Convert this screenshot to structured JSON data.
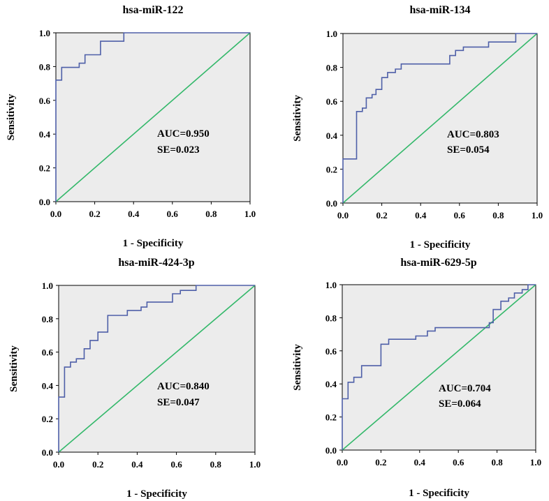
{
  "chart_data": [
    {
      "type": "line",
      "title": "hsa-miR-122",
      "xlabel": "1 - Specificity",
      "ylabel": "Sensitivity",
      "xlim": [
        0,
        1
      ],
      "ylim": [
        0,
        1
      ],
      "xticks": [
        "0.0",
        "0.2",
        "0.4",
        "0.6",
        "0.8",
        "1.0"
      ],
      "yticks": [
        "0.0",
        "0.2",
        "0.4",
        "0.6",
        "0.8",
        "1.0"
      ],
      "auc_text": "AUC=0.950",
      "se_text": "SE=0.023",
      "roc": [
        [
          0,
          0
        ],
        [
          0,
          0.72
        ],
        [
          0.03,
          0.72
        ],
        [
          0.03,
          0.795
        ],
        [
          0.12,
          0.795
        ],
        [
          0.12,
          0.82
        ],
        [
          0.15,
          0.82
        ],
        [
          0.15,
          0.87
        ],
        [
          0.23,
          0.87
        ],
        [
          0.23,
          0.95
        ],
        [
          0.35,
          0.95
        ],
        [
          0.35,
          1.0
        ],
        [
          1.0,
          1.0
        ]
      ],
      "reference": [
        [
          0,
          0
        ],
        [
          1,
          1
        ]
      ]
    },
    {
      "type": "line",
      "title": "hsa-miR-134",
      "xlabel": "1 - Specificity",
      "ylabel": "Sensitivity",
      "xlim": [
        0,
        1
      ],
      "ylim": [
        0,
        1
      ],
      "xticks": [
        "0.0",
        "0.2",
        "0.4",
        "0.6",
        "0.8",
        "1.0"
      ],
      "yticks": [
        "0.0",
        "0.2",
        "0.4",
        "0.6",
        "0.8",
        "1.0"
      ],
      "auc_text": "AUC=0.803",
      "se_text": "SE=0.054",
      "roc": [
        [
          0,
          0
        ],
        [
          0,
          0.26
        ],
        [
          0.07,
          0.26
        ],
        [
          0.07,
          0.54
        ],
        [
          0.1,
          0.54
        ],
        [
          0.1,
          0.56
        ],
        [
          0.12,
          0.56
        ],
        [
          0.12,
          0.62
        ],
        [
          0.15,
          0.62
        ],
        [
          0.15,
          0.64
        ],
        [
          0.17,
          0.64
        ],
        [
          0.17,
          0.67
        ],
        [
          0.2,
          0.67
        ],
        [
          0.2,
          0.74
        ],
        [
          0.23,
          0.74
        ],
        [
          0.23,
          0.77
        ],
        [
          0.27,
          0.77
        ],
        [
          0.27,
          0.79
        ],
        [
          0.3,
          0.79
        ],
        [
          0.3,
          0.82
        ],
        [
          0.55,
          0.82
        ],
        [
          0.55,
          0.87
        ],
        [
          0.58,
          0.87
        ],
        [
          0.58,
          0.9
        ],
        [
          0.62,
          0.9
        ],
        [
          0.62,
          0.92
        ],
        [
          0.75,
          0.92
        ],
        [
          0.75,
          0.95
        ],
        [
          0.89,
          0.95
        ],
        [
          0.89,
          1.0
        ],
        [
          1.0,
          1.0
        ]
      ],
      "reference": [
        [
          0,
          0
        ],
        [
          1,
          1
        ]
      ]
    },
    {
      "type": "line",
      "title": "hsa-miR-424-3p",
      "xlabel": "1 - Specificity",
      "ylabel": "Sensitivity",
      "xlim": [
        0,
        1
      ],
      "ylim": [
        0,
        1
      ],
      "xticks": [
        "0.0",
        "0.2",
        "0.4",
        "0.6",
        "0.8",
        "1.0"
      ],
      "yticks": [
        "0.0",
        "0.2",
        "0.4",
        "0.6",
        "0.8",
        "1.0"
      ],
      "auc_text": "AUC=0.840",
      "se_text": "SE=0.047",
      "roc": [
        [
          0,
          0
        ],
        [
          0,
          0.33
        ],
        [
          0.03,
          0.33
        ],
        [
          0.03,
          0.51
        ],
        [
          0.06,
          0.51
        ],
        [
          0.06,
          0.54
        ],
        [
          0.09,
          0.54
        ],
        [
          0.09,
          0.56
        ],
        [
          0.13,
          0.56
        ],
        [
          0.13,
          0.62
        ],
        [
          0.16,
          0.62
        ],
        [
          0.16,
          0.67
        ],
        [
          0.2,
          0.67
        ],
        [
          0.2,
          0.72
        ],
        [
          0.25,
          0.72
        ],
        [
          0.25,
          0.82
        ],
        [
          0.35,
          0.82
        ],
        [
          0.35,
          0.85
        ],
        [
          0.42,
          0.85
        ],
        [
          0.42,
          0.87
        ],
        [
          0.45,
          0.87
        ],
        [
          0.45,
          0.9
        ],
        [
          0.58,
          0.9
        ],
        [
          0.58,
          0.95
        ],
        [
          0.62,
          0.95
        ],
        [
          0.62,
          0.97
        ],
        [
          0.7,
          0.97
        ],
        [
          0.7,
          1.0
        ],
        [
          1.0,
          1.0
        ]
      ],
      "reference": [
        [
          0,
          0
        ],
        [
          1,
          1
        ]
      ]
    },
    {
      "type": "line",
      "title": "hsa-miR-629-5p",
      "xlabel": "1 - Specificity",
      "ylabel": "Sensitivity",
      "xlim": [
        0,
        1
      ],
      "ylim": [
        0,
        1
      ],
      "xticks": [
        "0.0",
        "0.2",
        "0.4",
        "0.6",
        "0.8",
        "1.0"
      ],
      "yticks": [
        "0.0",
        "0.2",
        "0.4",
        "0.6",
        "0.8",
        "1.0"
      ],
      "auc_text": "AUC=0.704",
      "se_text": "SE=0.064",
      "roc": [
        [
          0,
          0
        ],
        [
          0,
          0.31
        ],
        [
          0.03,
          0.31
        ],
        [
          0.03,
          0.41
        ],
        [
          0.06,
          0.41
        ],
        [
          0.06,
          0.44
        ],
        [
          0.1,
          0.44
        ],
        [
          0.1,
          0.51
        ],
        [
          0.2,
          0.51
        ],
        [
          0.2,
          0.64
        ],
        [
          0.24,
          0.64
        ],
        [
          0.24,
          0.67
        ],
        [
          0.38,
          0.67
        ],
        [
          0.38,
          0.69
        ],
        [
          0.44,
          0.69
        ],
        [
          0.44,
          0.72
        ],
        [
          0.48,
          0.72
        ],
        [
          0.48,
          0.74
        ],
        [
          0.76,
          0.74
        ],
        [
          0.76,
          0.77
        ],
        [
          0.78,
          0.77
        ],
        [
          0.78,
          0.85
        ],
        [
          0.82,
          0.85
        ],
        [
          0.82,
          0.9
        ],
        [
          0.86,
          0.9
        ],
        [
          0.86,
          0.92
        ],
        [
          0.89,
          0.92
        ],
        [
          0.89,
          0.95
        ],
        [
          0.93,
          0.95
        ],
        [
          0.93,
          0.97
        ],
        [
          0.96,
          0.97
        ],
        [
          0.96,
          1.0
        ],
        [
          1.0,
          1.0
        ]
      ],
      "reference": [
        [
          0,
          0
        ],
        [
          1,
          1
        ]
      ]
    }
  ]
}
